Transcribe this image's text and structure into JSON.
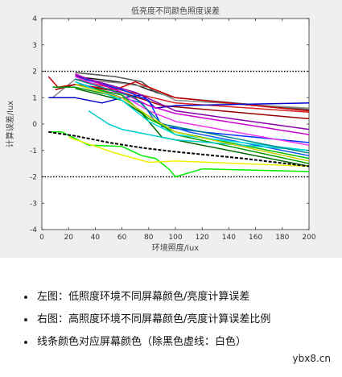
{
  "chart_data": {
    "type": "line",
    "title": "低亮度不同颜色照度误差",
    "xlabel": "环境照度/lux",
    "ylabel": "计算误差/lux",
    "xlim": [
      0,
      200
    ],
    "ylim": [
      -4,
      4
    ],
    "xticks": [
      0,
      20,
      40,
      60,
      80,
      100,
      120,
      140,
      160,
      180,
      200
    ],
    "yticks": [
      -4,
      -3,
      -2,
      -1,
      0,
      1,
      2,
      3,
      4
    ],
    "threshold_lines": [
      2,
      -2
    ],
    "grid": false,
    "series": [
      {
        "color": "#1a1a1a",
        "x": [
          25,
          50,
          70,
          80,
          100,
          200
        ],
        "y": [
          1.8,
          1.65,
          1.5,
          1.3,
          1.0,
          0.5
        ]
      },
      {
        "color": "#555555",
        "x": [
          25,
          55,
          75,
          85,
          100,
          200
        ],
        "y": [
          1.95,
          1.8,
          1.6,
          1.2,
          1.0,
          0.55
        ]
      },
      {
        "color": "#888888",
        "x": [
          8,
          25,
          60,
          80,
          100,
          200
        ],
        "y": [
          1.0,
          1.7,
          1.55,
          1.4,
          0.9,
          0.6
        ]
      },
      {
        "color": "#cc0000",
        "x": [
          5,
          12,
          25,
          55,
          70,
          100,
          200
        ],
        "y": [
          1.8,
          1.4,
          1.5,
          1.3,
          1.6,
          1.0,
          0.5
        ]
      },
      {
        "color": "#dd2222",
        "x": [
          25,
          50,
          75,
          100,
          200
        ],
        "y": [
          1.7,
          1.4,
          1.1,
          0.8,
          0.45
        ]
      },
      {
        "color": "#990000",
        "x": [
          10,
          25,
          60,
          90,
          200
        ],
        "y": [
          1.3,
          1.5,
          1.2,
          0.7,
          0.2
        ]
      },
      {
        "color": "#0000cc",
        "x": [
          5,
          25,
          45,
          60,
          75,
          85,
          100,
          200
        ],
        "y": [
          1.0,
          1.0,
          0.8,
          1.0,
          1.1,
          0.6,
          0.7,
          0.8
        ]
      },
      {
        "color": "#0033ff",
        "x": [
          25,
          60,
          80,
          90,
          120,
          200
        ],
        "y": [
          1.8,
          1.3,
          0.9,
          -0.1,
          -0.3,
          -0.7
        ]
      },
      {
        "color": "#1155ee",
        "x": [
          25,
          60,
          75,
          85,
          110,
          200
        ],
        "y": [
          1.6,
          1.0,
          0.8,
          0.1,
          -0.3,
          -1.2
        ]
      },
      {
        "color": "#cc00cc",
        "x": [
          25,
          60,
          80,
          100,
          200
        ],
        "y": [
          1.9,
          1.2,
          0.7,
          0.4,
          -0.4
        ]
      },
      {
        "color": "#ee33ee",
        "x": [
          25,
          60,
          80,
          100,
          200
        ],
        "y": [
          1.8,
          1.1,
          0.5,
          0.1,
          -0.8
        ]
      },
      {
        "color": "#8800aa",
        "x": [
          25,
          70,
          100,
          200
        ],
        "y": [
          1.85,
          1.2,
          0.5,
          -0.2
        ]
      },
      {
        "color": "#009900",
        "x": [
          8,
          25,
          60,
          80,
          100,
          200
        ],
        "y": [
          1.4,
          1.4,
          1.0,
          0.3,
          -0.4,
          -1.5
        ]
      },
      {
        "color": "#00bb00",
        "x": [
          25,
          60,
          80,
          100,
          200
        ],
        "y": [
          1.5,
          1.1,
          0.2,
          -0.3,
          -1.3
        ]
      },
      {
        "color": "#006600",
        "x": [
          25,
          60,
          75,
          90,
          200
        ],
        "y": [
          1.35,
          0.9,
          0.4,
          -0.5,
          -1.6
        ]
      },
      {
        "color": "#00ee00",
        "x": [
          5,
          15,
          35,
          60,
          75,
          85,
          95,
          100,
          120,
          200
        ],
        "y": [
          -0.3,
          -0.3,
          -0.8,
          -0.85,
          -1.2,
          -1.3,
          -1.7,
          -2.0,
          -1.7,
          -1.8
        ]
      },
      {
        "color": "#00cccc",
        "x": [
          35,
          50,
          60,
          80,
          100,
          200
        ],
        "y": [
          0.5,
          0.0,
          -0.2,
          -0.4,
          -0.6,
          -1.0
        ]
      },
      {
        "color": "#00dddd",
        "x": [
          25,
          60,
          80,
          100,
          200
        ],
        "y": [
          1.6,
          0.9,
          0.1,
          -0.4,
          -1.0
        ]
      },
      {
        "color": "#008888",
        "x": [
          25,
          70,
          90,
          200
        ],
        "y": [
          1.7,
          1.0,
          0.0,
          -1.1
        ]
      },
      {
        "color": "#eeee00",
        "x": [
          20,
          55,
          80,
          100,
          200
        ],
        "y": [
          -0.5,
          -1.1,
          -1.45,
          -1.4,
          -1.6
        ]
      },
      {
        "color": "#cccc00",
        "x": [
          25,
          60,
          80,
          100,
          200
        ],
        "y": [
          1.5,
          1.0,
          0.3,
          -0.3,
          -1.4
        ]
      },
      {
        "color": "#000000",
        "dashed": true,
        "x": [
          5,
          25,
          50,
          75,
          100,
          150,
          200
        ],
        "y": [
          -0.3,
          -0.45,
          -0.7,
          -0.9,
          -1.05,
          -1.3,
          -1.6
        ]
      }
    ]
  },
  "bullets": [
    {
      "text": "左图：低照度环境不同屏幕颜色/亮度计算误差"
    },
    {
      "text": "右图：高照度环境不同屏幕颜色/亮度计算误差比例"
    },
    {
      "text": "线条颜色对应屏幕颜色（除黑色虚线：白色）"
    }
  ],
  "watermark": "ybx8.cn"
}
